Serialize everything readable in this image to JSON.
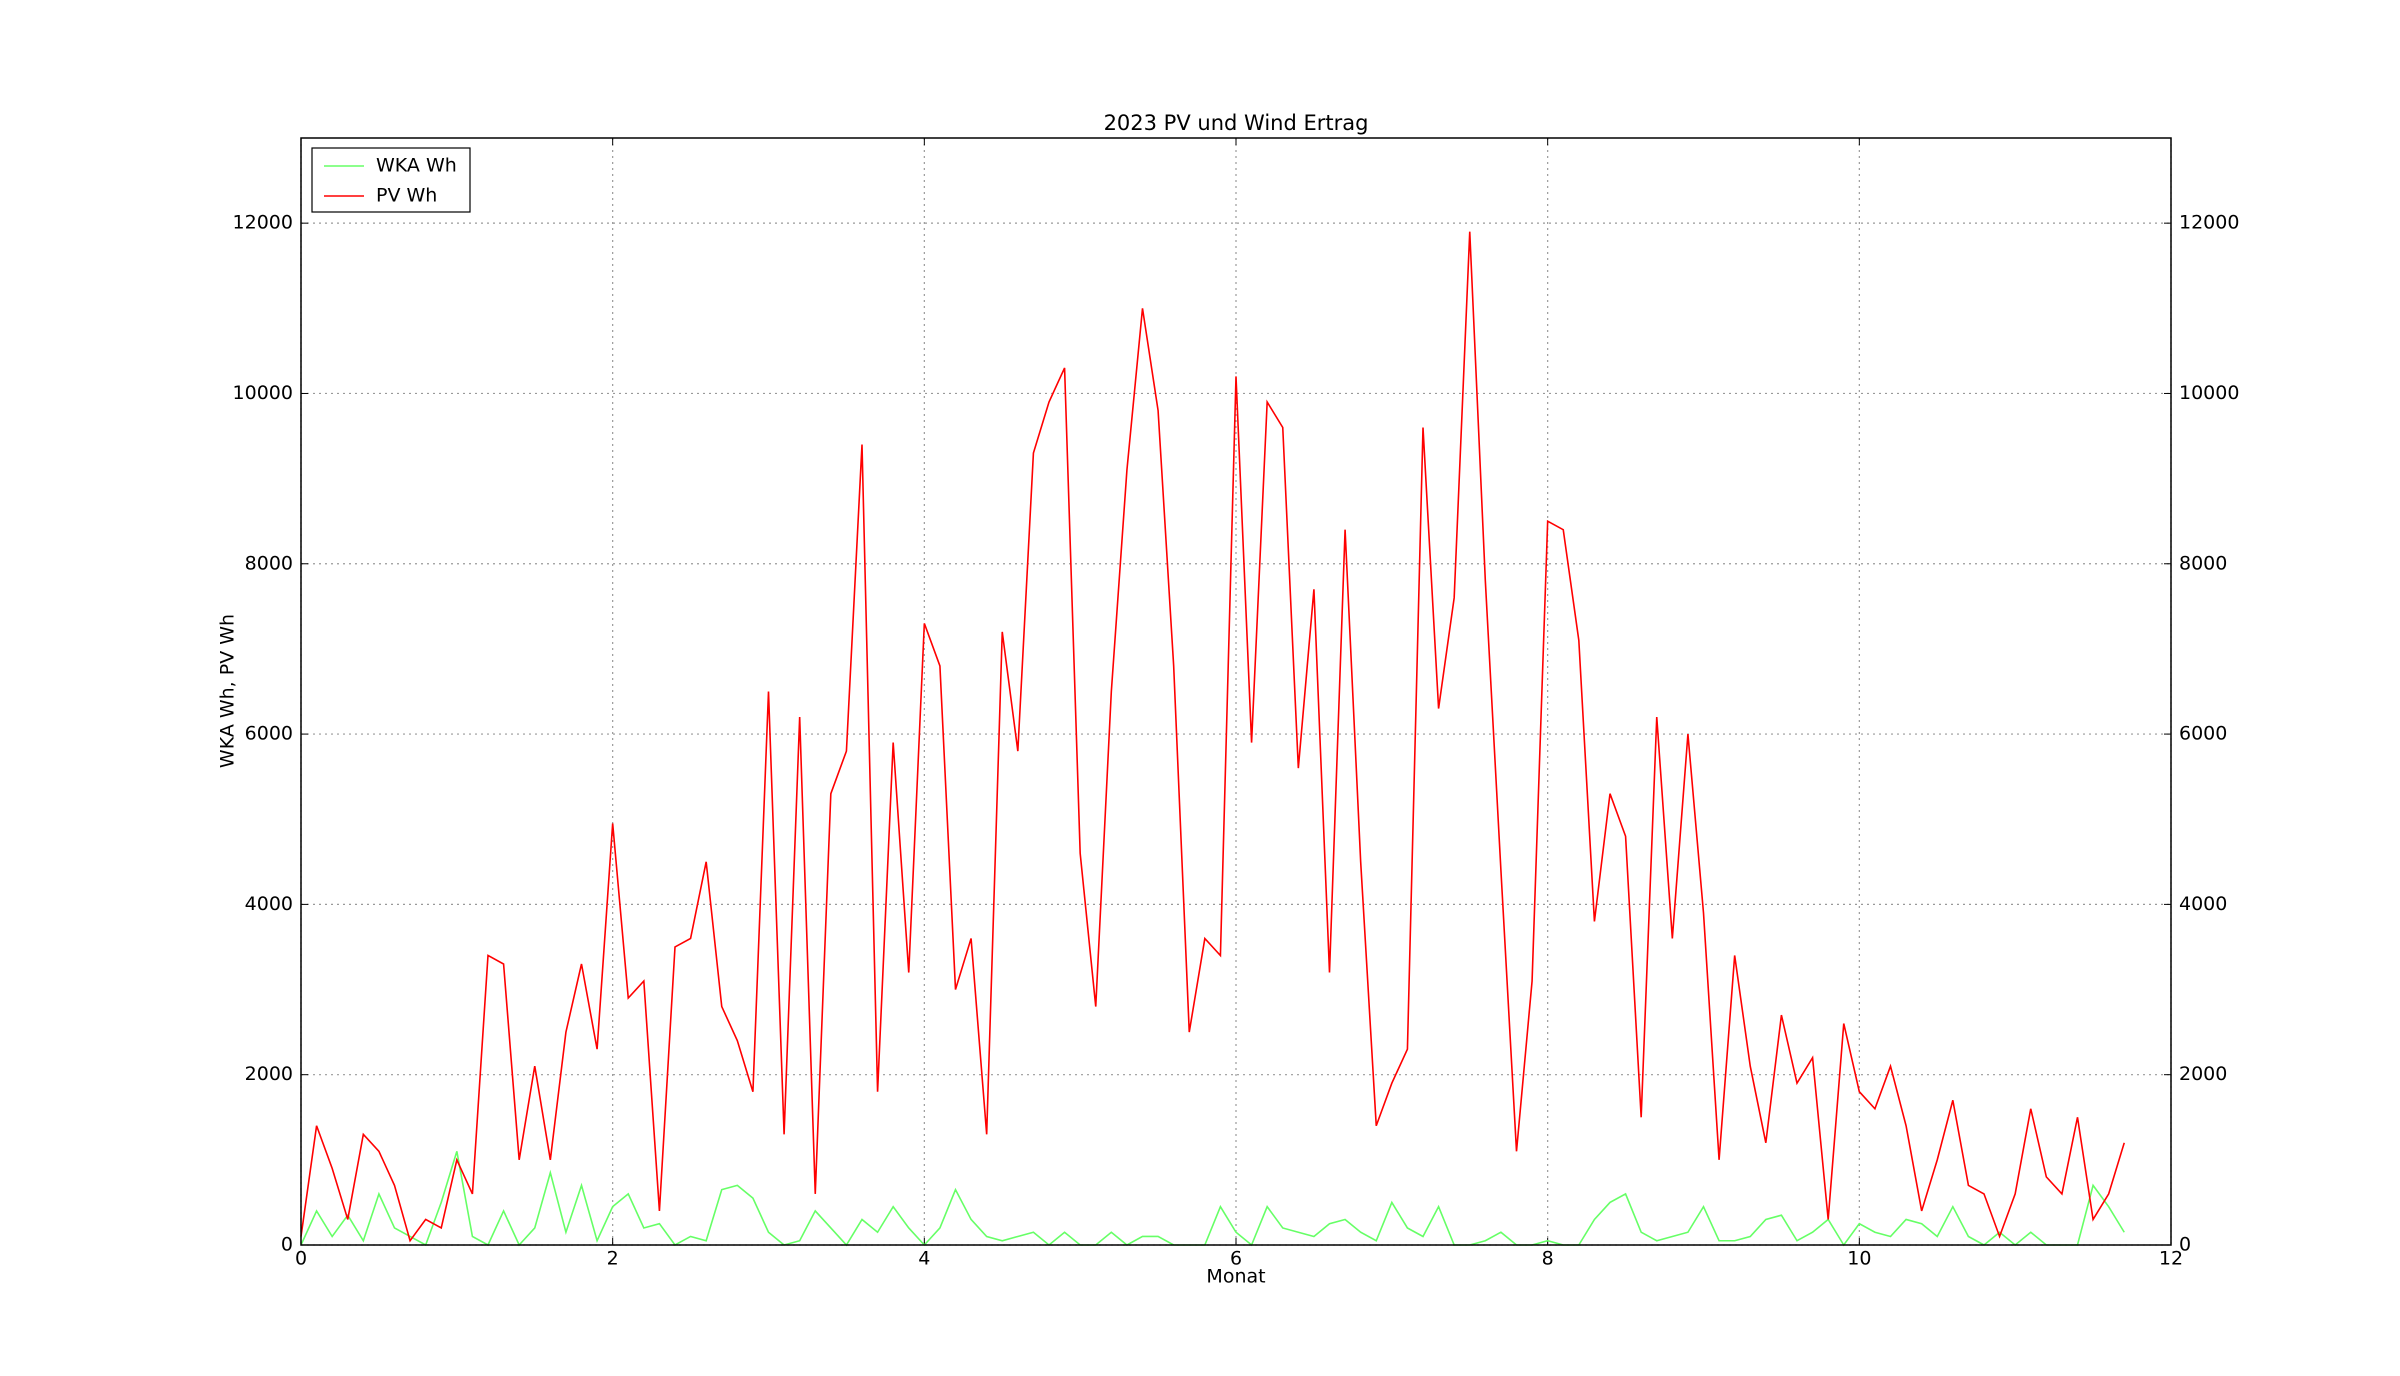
{
  "chart_data": {
    "type": "line",
    "title": "2023 PV und Wind Ertrag",
    "x_label": "Monat",
    "y_label": "WKA Wh, PV Wh",
    "x": [
      0,
      0.1,
      0.2,
      0.3,
      0.4,
      0.5,
      0.6,
      0.7,
      0.8,
      0.9,
      1,
      1.1,
      1.2,
      1.3,
      1.4,
      1.5,
      1.6,
      1.7,
      1.8,
      1.9,
      2,
      2.1,
      2.2,
      2.3,
      2.4,
      2.5,
      2.6,
      2.7,
      2.8,
      2.9,
      3,
      3.1,
      3.2,
      3.3,
      3.4,
      3.5,
      3.6,
      3.7,
      3.8,
      3.9,
      4,
      4.1,
      4.2,
      4.3,
      4.4,
      4.5,
      4.6,
      4.7,
      4.8,
      4.9,
      5,
      5.1,
      5.2,
      5.3,
      5.4,
      5.5,
      5.6,
      5.7,
      5.8,
      5.9,
      6,
      6.1,
      6.2,
      6.3,
      6.4,
      6.5,
      6.6,
      6.7,
      6.8,
      6.9,
      7,
      7.1,
      7.2,
      7.3,
      7.4,
      7.5,
      7.6,
      7.7,
      7.8,
      7.9,
      8,
      8.1,
      8.2,
      8.3,
      8.4,
      8.5,
      8.6,
      8.7,
      8.8,
      8.9,
      9,
      9.1,
      9.2,
      9.3,
      9.4,
      9.5,
      9.6,
      9.7,
      9.8,
      9.9,
      10,
      10.1,
      10.2,
      10.3,
      10.4,
      10.5,
      10.6,
      10.7,
      10.8,
      10.9,
      11,
      11.1,
      11.2,
      11.3,
      11.4,
      11.5,
      11.6,
      11.7
    ],
    "series": [
      {
        "name": "WKA Wh",
        "color": "#66ff66",
        "values": [
          0,
          400,
          100,
          350,
          50,
          600,
          200,
          100,
          0,
          500,
          1100,
          100,
          0,
          400,
          0,
          200,
          850,
          150,
          700,
          50,
          450,
          600,
          200,
          250,
          0,
          100,
          50,
          650,
          700,
          550,
          150,
          0,
          50,
          400,
          200,
          0,
          300,
          150,
          450,
          200,
          0,
          200,
          650,
          300,
          100,
          50,
          100,
          150,
          0,
          150,
          0,
          0,
          150,
          0,
          100,
          100,
          0,
          0,
          0,
          450,
          150,
          0,
          450,
          200,
          150,
          100,
          250,
          300,
          150,
          50,
          500,
          200,
          100,
          450,
          0,
          0,
          50,
          150,
          0,
          0,
          50,
          0,
          0,
          300,
          500,
          600,
          150,
          50,
          100,
          150,
          450,
          50,
          50,
          100,
          300,
          350,
          50,
          150,
          300,
          0,
          250,
          150,
          100,
          300,
          250,
          100,
          450,
          100,
          0,
          150,
          0,
          150,
          0,
          0,
          0,
          700,
          450,
          150
        ]
      },
      {
        "name": "PV Wh",
        "color": "#ff0000",
        "values": [
          100,
          1400,
          900,
          300,
          1300,
          1100,
          700,
          50,
          300,
          200,
          1000,
          600,
          3400,
          3300,
          1000,
          2100,
          1000,
          2500,
          3300,
          2300,
          4950,
          2900,
          3100,
          400,
          3500,
          3600,
          4500,
          2800,
          2400,
          1800,
          6500,
          1300,
          6200,
          600,
          5300,
          5800,
          9400,
          1800,
          5900,
          3200,
          7300,
          6800,
          3000,
          3600,
          1300,
          7200,
          5800,
          9300,
          9900,
          10300,
          4600,
          2800,
          6500,
          9100,
          11000,
          9800,
          6800,
          2500,
          3600,
          3400,
          10200,
          5900,
          9900,
          9600,
          5600,
          7700,
          3200,
          8400,
          4500,
          1400,
          1900,
          2300,
          9600,
          6300,
          7600,
          11900,
          7800,
          4400,
          1100,
          3100,
          8500,
          8400,
          7100,
          3800,
          5300,
          4800,
          1500,
          6200,
          3600,
          6000,
          3900,
          1000,
          3400,
          2100,
          1200,
          2700,
          1900,
          2200,
          300,
          2600,
          1800,
          1600,
          2100,
          1400,
          400,
          1000,
          1700,
          700,
          600,
          100,
          600,
          1600,
          800,
          600,
          1500,
          300,
          600,
          1200
        ]
      }
    ],
    "xlim": [
      0,
      12
    ],
    "xticks": [
      0,
      2,
      4,
      6,
      8,
      10,
      12
    ],
    "ylim": [
      0,
      13000
    ],
    "yticks": [
      0,
      2000,
      4000,
      6000,
      8000,
      10000,
      12000
    ],
    "grid": true,
    "legend": "upper left"
  }
}
